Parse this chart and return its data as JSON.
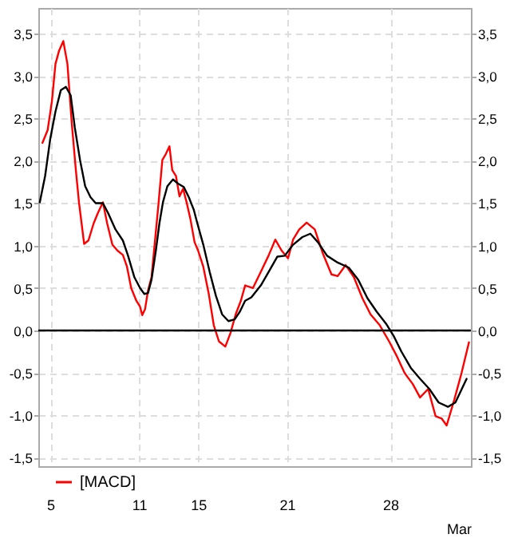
{
  "chart_data": {
    "type": "line",
    "xlabel": "Mar",
    "xlim": [
      4.19,
      33.45
    ],
    "xticks": [
      5,
      11,
      15,
      21,
      28
    ],
    "ylim": [
      -1.6,
      3.8
    ],
    "yticks": [
      {
        "value": -1.5,
        "label": "-1,5"
      },
      {
        "value": -1,
        "label": "-1,0"
      },
      {
        "value": -0.5,
        "label": "-0,5"
      },
      {
        "value": 0,
        "label": "0,0"
      },
      {
        "value": 0.5,
        "label": "0,5"
      },
      {
        "value": 1,
        "label": "1,0"
      },
      {
        "value": 1.5,
        "label": "1,5"
      },
      {
        "value": 2,
        "label": "2,0"
      },
      {
        "value": 2.5,
        "label": "2,5"
      },
      {
        "value": 3,
        "label": "3,0"
      },
      {
        "value": 3.5,
        "label": "3,5"
      }
    ],
    "y2lim": [
      -1.6,
      3.8
    ],
    "y2ticks": [
      {
        "value": -1.5,
        "label": "-1,5"
      },
      {
        "value": -1,
        "label": "-1,0"
      },
      {
        "value": -0.5,
        "label": "-0,5"
      },
      {
        "value": 0,
        "label": "0,0"
      },
      {
        "value": 0.5,
        "label": "0,5"
      },
      {
        "value": 1,
        "label": "1,0"
      },
      {
        "value": 1.5,
        "label": "1,5"
      },
      {
        "value": 2,
        "label": "2,0"
      },
      {
        "value": 2.5,
        "label": "2,5"
      },
      {
        "value": 3,
        "label": "3,0"
      },
      {
        "value": 3.5,
        "label": "3,5"
      }
    ],
    "grid": true,
    "legend": "bottom left",
    "line_style": "solid",
    "ref_lines": [
      {
        "axis": "y",
        "value": 0,
        "color": "#000000"
      }
    ],
    "series": [
      {
        "name": "[MACD]",
        "color": "#ff0000",
        "x": [
          4.47,
          4.82,
          5.11,
          5.35,
          5.6,
          5.88,
          6.16,
          6.45,
          6.73,
          6.94,
          7.29,
          7.58,
          7.93,
          8.21,
          8.56,
          8.85,
          9.2,
          9.55,
          9.91,
          10.19,
          10.47,
          10.82,
          11.07,
          11.22,
          11.41,
          11.61,
          11.85,
          12.09,
          12.33,
          12.58,
          12.82,
          13.06,
          13.25,
          13.5,
          13.74,
          13.98,
          14.22,
          14.47,
          14.76,
          15.0,
          15.35,
          15.71,
          16.06,
          16.41,
          16.84,
          17.19,
          17.54,
          17.89,
          18.18,
          18.71,
          19.24,
          19.76,
          20.22,
          20.65,
          21.08,
          21.42,
          21.84,
          22.34,
          22.89,
          23.43,
          24.02,
          24.44,
          24.98,
          25.53,
          26.11,
          26.66,
          27.29,
          27.92,
          28.46,
          28.96,
          29.51,
          30.01,
          30.56,
          31.06,
          31.48,
          31.81,
          32.32,
          32.82,
          33.32
        ],
        "values": [
          2.21,
          2.36,
          2.7,
          3.14,
          3.3,
          3.41,
          3.14,
          2.45,
          1.89,
          1.51,
          1.02,
          1.06,
          1.26,
          1.38,
          1.51,
          1.26,
          1.01,
          0.94,
          0.89,
          0.75,
          0.5,
          0.35,
          0.28,
          0.18,
          0.25,
          0.47,
          0.63,
          1.07,
          1.51,
          2.01,
          2.08,
          2.17,
          1.89,
          1.82,
          1.58,
          1.67,
          1.51,
          1.32,
          1.04,
          0.94,
          0.75,
          0.44,
          0.06,
          -0.13,
          -0.19,
          -0.03,
          0.19,
          0.35,
          0.53,
          0.5,
          0.69,
          0.88,
          1.07,
          0.94,
          0.85,
          1.07,
          1.19,
          1.27,
          1.19,
          0.91,
          0.66,
          0.64,
          0.77,
          0.63,
          0.38,
          0.19,
          0.06,
          -0.13,
          -0.31,
          -0.5,
          -0.63,
          -0.79,
          -0.69,
          -1.01,
          -1.04,
          -1.12,
          -0.82,
          -0.5,
          -0.14
        ]
      },
      {
        "color": "#000000",
        "x": [
          4.29,
          4.65,
          5.0,
          5.35,
          5.71,
          6.06,
          6.38,
          6.66,
          7.01,
          7.36,
          7.72,
          8.07,
          8.56,
          8.92,
          9.41,
          9.91,
          10.26,
          10.68,
          11.07,
          11.36,
          11.61,
          11.85,
          12.14,
          12.38,
          12.62,
          12.92,
          13.3,
          13.64,
          14.03,
          14.37,
          14.71,
          14.95,
          15.35,
          15.78,
          16.2,
          16.62,
          17.05,
          17.47,
          17.82,
          18.18,
          18.6,
          19.24,
          19.87,
          20.36,
          20.86,
          21.42,
          22.05,
          22.59,
          23.1,
          23.72,
          24.44,
          25.19,
          25.82,
          26.45,
          27.08,
          27.71,
          28.21,
          28.75,
          29.38,
          30.01,
          30.64,
          31.27,
          31.9,
          32.4,
          33.16
        ],
        "values": [
          1.51,
          1.82,
          2.26,
          2.58,
          2.83,
          2.87,
          2.77,
          2.39,
          2.01,
          1.7,
          1.57,
          1.5,
          1.5,
          1.38,
          1.19,
          1.06,
          0.88,
          0.63,
          0.5,
          0.43,
          0.44,
          0.6,
          0.94,
          1.26,
          1.51,
          1.7,
          1.78,
          1.73,
          1.69,
          1.57,
          1.42,
          1.26,
          1.01,
          0.69,
          0.41,
          0.19,
          0.11,
          0.13,
          0.22,
          0.35,
          0.39,
          0.53,
          0.72,
          0.87,
          0.88,
          1.01,
          1.1,
          1.14,
          1.04,
          0.88,
          0.8,
          0.74,
          0.6,
          0.38,
          0.22,
          0.08,
          -0.06,
          -0.25,
          -0.44,
          -0.57,
          -0.69,
          -0.85,
          -0.9,
          -0.85,
          -0.57
        ]
      }
    ]
  }
}
